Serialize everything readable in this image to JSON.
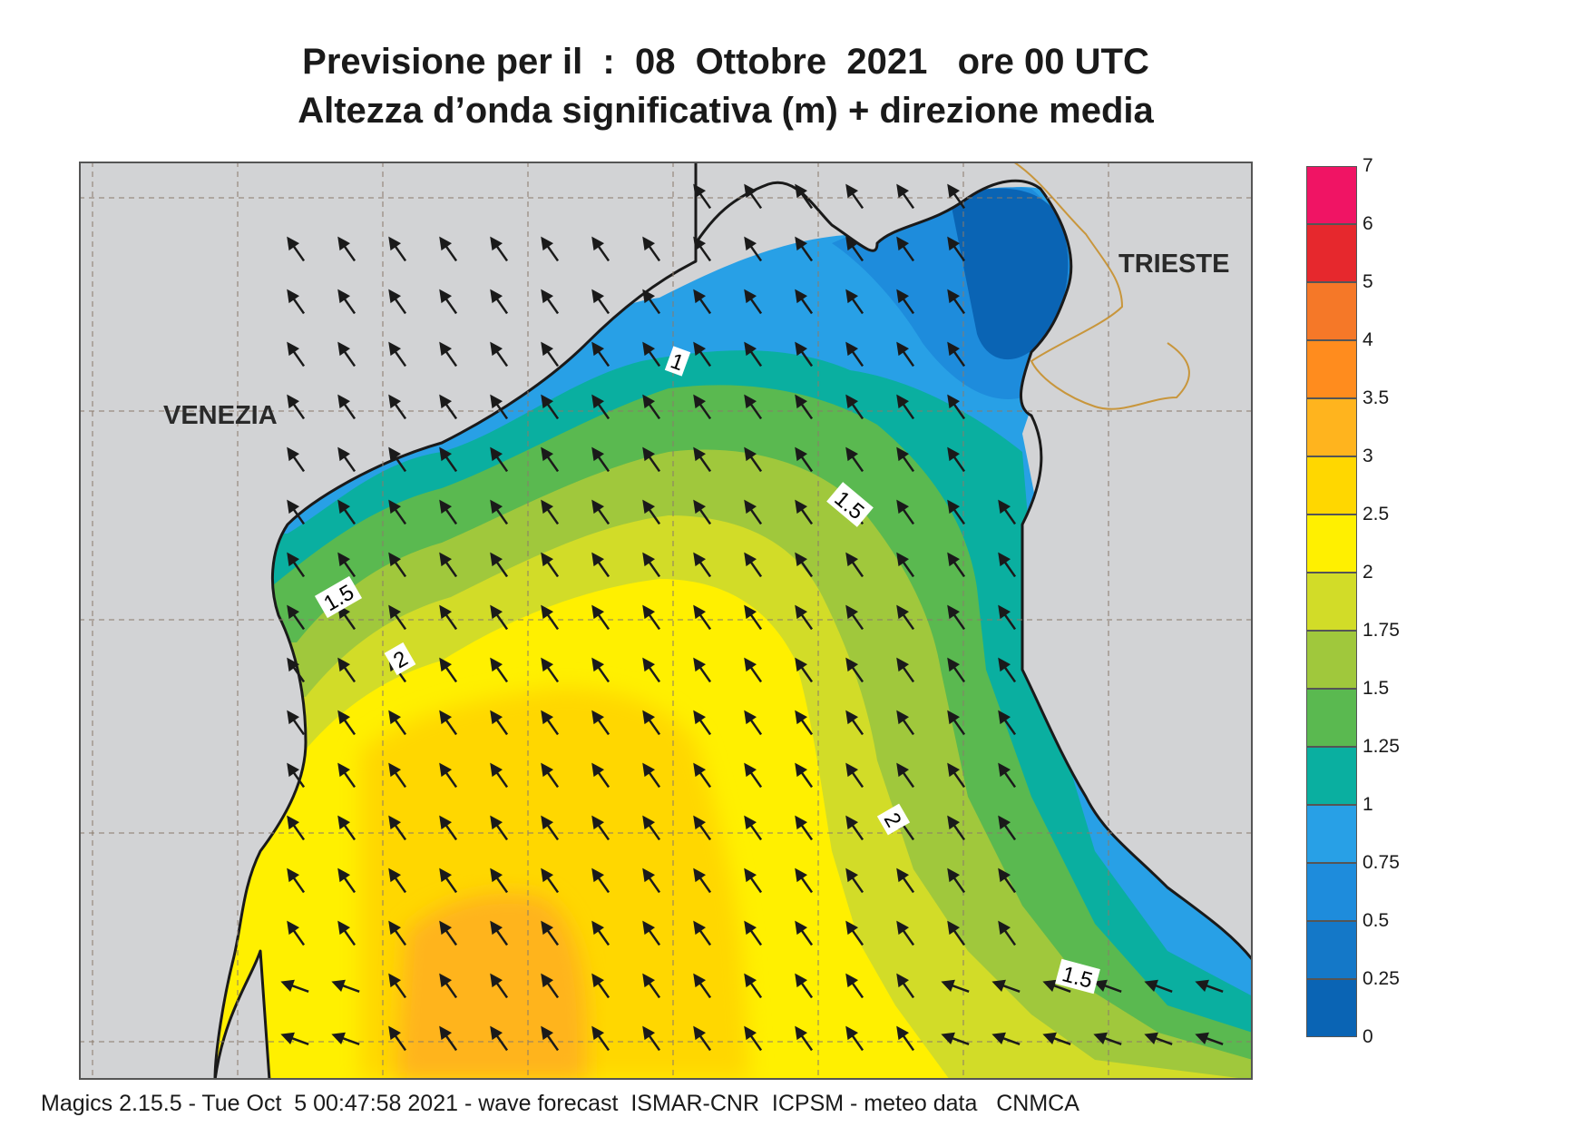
{
  "title": {
    "line1": "Previsione per il  :  08  Ottobre  2021   ore 00 UTC",
    "line2": "Altezza d’onda significativa (m) + direzione media"
  },
  "cities": {
    "venezia": "VENEZIA",
    "trieste": "TRIESTE"
  },
  "contour_labels": [
    "1",
    "1.5",
    "1.5",
    "1.5",
    "2",
    "2"
  ],
  "colorbar": {
    "ticks": [
      "0",
      "0.25",
      "0.5",
      "0.75",
      "1",
      "1.25",
      "1.5",
      "1.75",
      "2",
      "2.5",
      "3",
      "3.5",
      "4",
      "5",
      "6",
      "7"
    ],
    "colors": [
      "#0a64b4",
      "#1478c8",
      "#1e8cdc",
      "#28a0e6",
      "#0aafa0",
      "#5ab950",
      "#a0c83c",
      "#d2dc28",
      "#fff000",
      "#ffd700",
      "#ffb41e",
      "#ff8c1e",
      "#f57828",
      "#e6282d",
      "#f01464"
    ]
  },
  "footer": "Magics 2.15.5 - Tue Oct  5 00:47:58 2021 - wave forecast  ISMAR-CNR  ICPSM - meteo data   CNMCA"
}
